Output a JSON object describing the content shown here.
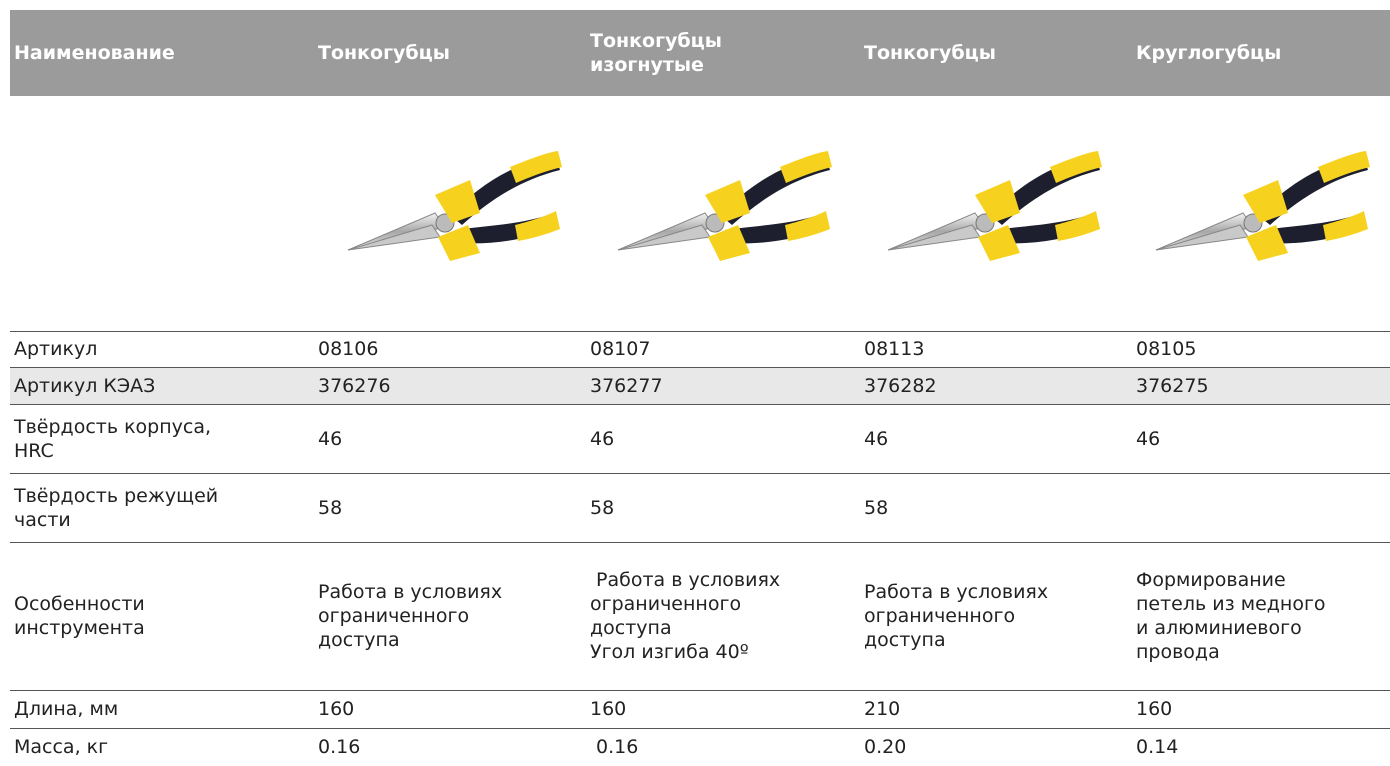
{
  "table": {
    "header": [
      "Наименование",
      "Тонкогубцы",
      "Тонкогубцы\nизогнутые",
      "Тонкогубцы",
      "Круглогубцы"
    ],
    "rows": [
      [
        "Артикул",
        "08106",
        "08107",
        "08113",
        "08105"
      ],
      [
        "Артикул КЭАЗ",
        "376276",
        "376277",
        "376282",
        "376275"
      ],
      [
        "Твёрдость корпуса,\nHRC",
        "46",
        "46",
        "46",
        "46"
      ],
      [
        "Твёрдость режущей\nчасти",
        "58",
        "58",
        "58",
        null
      ],
      [
        "Особенности\nинструмента",
        "Работа в условиях\nограниченного\nдоступа",
        " Работа в условиях\nограниченного\nдоступа\nУгол изгиба 40º",
        "Работа в условиях\nограниченного\nдоступа",
        "Формирование\nпетель из медного\nи алюминиевого\nпровода"
      ],
      [
        "Длина, мм",
        "160",
        "160",
        "210",
        "160"
      ],
      [
        "Масса, кг",
        "0.16",
        " 0.16",
        "0.20",
        "0.14"
      ]
    ]
  }
}
